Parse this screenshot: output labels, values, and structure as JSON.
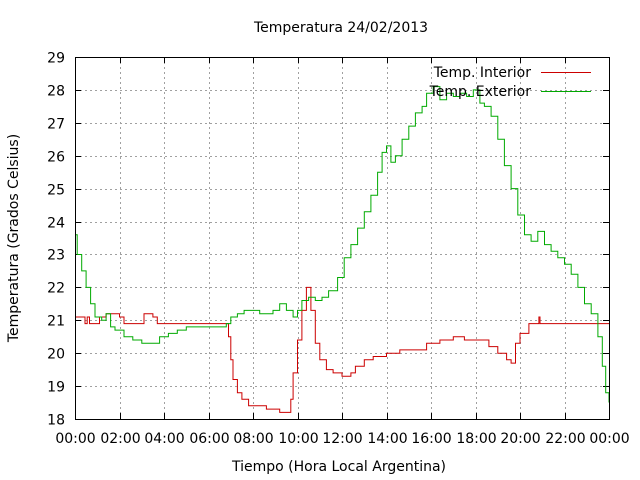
{
  "chart_data": {
    "type": "line",
    "title": "Temperatura 24/02/2013",
    "xlabel": "Tiempo (Hora Local Argentina)",
    "ylabel": "Temperatura (Grados Celsius)",
    "xlim": [
      0,
      24
    ],
    "ylim": [
      18,
      29
    ],
    "x_tick_labels": [
      "00:00",
      "02:00",
      "04:00",
      "06:00",
      "08:00",
      "10:00",
      "12:00",
      "14:00",
      "16:00",
      "18:00",
      "20:00",
      "22:00",
      "00:00"
    ],
    "y_ticks": [
      18,
      19,
      20,
      21,
      22,
      23,
      24,
      25,
      26,
      27,
      28,
      29
    ],
    "grid": true,
    "legend": "top-right",
    "series": [
      {
        "name": "Temp. Interior",
        "color": "#cc0000",
        "points": [
          [
            0.0,
            21.1
          ],
          [
            0.35,
            21.1
          ],
          [
            0.45,
            20.9
          ],
          [
            0.55,
            21.1
          ],
          [
            0.65,
            20.9
          ],
          [
            0.9,
            20.9
          ],
          [
            1.1,
            21.1
          ],
          [
            1.4,
            21.2
          ],
          [
            2.0,
            21.1
          ],
          [
            2.2,
            20.9
          ],
          [
            2.9,
            20.9
          ],
          [
            3.1,
            21.2
          ],
          [
            3.5,
            21.1
          ],
          [
            3.7,
            20.9
          ],
          [
            6.4,
            20.9
          ],
          [
            6.8,
            20.9
          ],
          [
            6.9,
            20.5
          ],
          [
            7.0,
            19.8
          ],
          [
            7.1,
            19.2
          ],
          [
            7.3,
            18.8
          ],
          [
            7.5,
            18.6
          ],
          [
            7.8,
            18.4
          ],
          [
            8.2,
            18.4
          ],
          [
            8.6,
            18.3
          ],
          [
            9.0,
            18.3
          ],
          [
            9.2,
            18.2
          ],
          [
            9.6,
            18.2
          ],
          [
            9.7,
            18.6
          ],
          [
            9.8,
            19.4
          ],
          [
            10.0,
            20.4
          ],
          [
            10.2,
            21.3
          ],
          [
            10.4,
            22.0
          ],
          [
            10.6,
            21.3
          ],
          [
            10.8,
            20.3
          ],
          [
            11.0,
            19.8
          ],
          [
            11.3,
            19.5
          ],
          [
            11.6,
            19.4
          ],
          [
            12.0,
            19.3
          ],
          [
            12.4,
            19.4
          ],
          [
            12.6,
            19.6
          ],
          [
            13.0,
            19.8
          ],
          [
            13.4,
            19.9
          ],
          [
            14.0,
            20.0
          ],
          [
            14.6,
            20.1
          ],
          [
            15.2,
            20.1
          ],
          [
            15.8,
            20.3
          ],
          [
            16.4,
            20.4
          ],
          [
            17.0,
            20.5
          ],
          [
            17.5,
            20.4
          ],
          [
            18.2,
            20.4
          ],
          [
            18.6,
            20.2
          ],
          [
            19.0,
            20.0
          ],
          [
            19.4,
            19.8
          ],
          [
            19.6,
            19.7
          ],
          [
            19.8,
            20.3
          ],
          [
            20.0,
            20.6
          ],
          [
            20.4,
            20.9
          ],
          [
            20.8,
            20.9
          ],
          [
            20.85,
            21.1
          ],
          [
            20.9,
            20.9
          ],
          [
            24.0,
            20.9
          ]
        ]
      },
      {
        "name": "Temp. Exterior",
        "color": "#00aa00",
        "points": [
          [
            0.0,
            23.6
          ],
          [
            0.1,
            23.0
          ],
          [
            0.3,
            22.5
          ],
          [
            0.5,
            22.0
          ],
          [
            0.7,
            21.5
          ],
          [
            0.9,
            21.1
          ],
          [
            1.2,
            21.0
          ],
          [
            1.4,
            21.2
          ],
          [
            1.6,
            20.8
          ],
          [
            1.8,
            20.7
          ],
          [
            2.2,
            20.5
          ],
          [
            2.6,
            20.4
          ],
          [
            3.0,
            20.3
          ],
          [
            3.4,
            20.3
          ],
          [
            3.8,
            20.5
          ],
          [
            4.2,
            20.6
          ],
          [
            4.6,
            20.7
          ],
          [
            5.0,
            20.8
          ],
          [
            5.5,
            20.8
          ],
          [
            6.0,
            20.8
          ],
          [
            6.5,
            20.8
          ],
          [
            6.8,
            20.9
          ],
          [
            7.0,
            21.1
          ],
          [
            7.3,
            21.2
          ],
          [
            7.6,
            21.3
          ],
          [
            8.0,
            21.3
          ],
          [
            8.3,
            21.2
          ],
          [
            8.6,
            21.2
          ],
          [
            8.9,
            21.3
          ],
          [
            9.2,
            21.5
          ],
          [
            9.5,
            21.3
          ],
          [
            9.8,
            21.1
          ],
          [
            10.0,
            21.3
          ],
          [
            10.2,
            21.6
          ],
          [
            10.5,
            21.7
          ],
          [
            10.8,
            21.6
          ],
          [
            11.1,
            21.7
          ],
          [
            11.4,
            21.9
          ],
          [
            11.8,
            22.3
          ],
          [
            12.1,
            22.9
          ],
          [
            12.4,
            23.3
          ],
          [
            12.7,
            23.8
          ],
          [
            13.0,
            24.3
          ],
          [
            13.3,
            24.8
          ],
          [
            13.6,
            25.5
          ],
          [
            13.8,
            26.1
          ],
          [
            14.0,
            26.3
          ],
          [
            14.2,
            25.8
          ],
          [
            14.4,
            26.0
          ],
          [
            14.7,
            26.5
          ],
          [
            15.0,
            26.9
          ],
          [
            15.3,
            27.3
          ],
          [
            15.6,
            27.5
          ],
          [
            15.8,
            27.9
          ],
          [
            16.1,
            28.1
          ],
          [
            16.4,
            27.7
          ],
          [
            16.7,
            27.9
          ],
          [
            17.0,
            27.8
          ],
          [
            17.3,
            27.9
          ],
          [
            17.6,
            27.8
          ],
          [
            17.9,
            28.0
          ],
          [
            18.2,
            27.6
          ],
          [
            18.4,
            27.5
          ],
          [
            18.7,
            27.2
          ],
          [
            19.0,
            26.5
          ],
          [
            19.3,
            25.7
          ],
          [
            19.6,
            25.0
          ],
          [
            19.9,
            24.2
          ],
          [
            20.2,
            23.6
          ],
          [
            20.5,
            23.4
          ],
          [
            20.8,
            23.7
          ],
          [
            21.1,
            23.3
          ],
          [
            21.4,
            23.1
          ],
          [
            21.7,
            22.9
          ],
          [
            22.0,
            22.7
          ],
          [
            22.3,
            22.4
          ],
          [
            22.6,
            22.0
          ],
          [
            22.9,
            21.5
          ],
          [
            23.2,
            21.2
          ],
          [
            23.5,
            20.5
          ],
          [
            23.7,
            19.6
          ],
          [
            23.85,
            18.8
          ],
          [
            24.0,
            18.5
          ]
        ]
      }
    ]
  }
}
